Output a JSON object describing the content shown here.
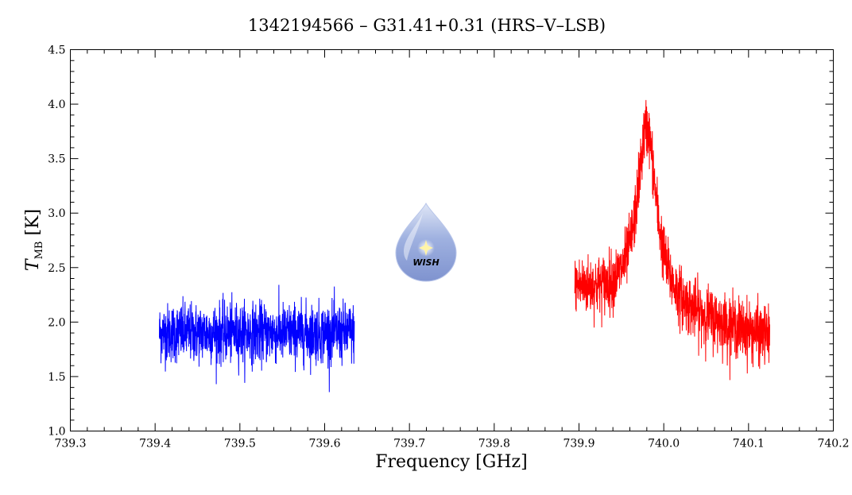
{
  "chart_data": {
    "type": "line",
    "title": "1342194566 – G31.41+0.31 (HRS–V–LSB)",
    "xlabel": "Frequency [GHz]",
    "ylabel": "T",
    "ylabel_subscript": "MB",
    "ylabel_unit": "[K]",
    "xlim": [
      739.3,
      740.2
    ],
    "ylim": [
      1.0,
      4.5
    ],
    "xticks": [
      739.3,
      739.4,
      739.5,
      739.6,
      739.7,
      739.8,
      739.9,
      740.0,
      740.1,
      740.2
    ],
    "xtick_labels": [
      "739.3",
      "739.4",
      "739.5",
      "739.6",
      "739.7",
      "739.8",
      "739.9",
      "740.0",
      "740.1",
      "740.2"
    ],
    "yticks": [
      1.0,
      1.5,
      2.0,
      2.5,
      3.0,
      3.5,
      4.0,
      4.5
    ],
    "ytick_labels": [
      "1.0",
      "1.5",
      "2.0",
      "2.5",
      "3.0",
      "3.5",
      "4.0",
      "4.5"
    ],
    "grid": false,
    "series": [
      {
        "color": "#0000ff",
        "x_range": [
          739.405,
          739.635
        ],
        "baseline": 1.9,
        "noise_rms": 0.18
      },
      {
        "color": "#ff0000",
        "x_range": [
          739.895,
          740.125
        ],
        "baseline_start": 2.3,
        "baseline_end": 1.85,
        "noise_rms": 0.18,
        "peak_center": 739.98,
        "peak_height": 1.65,
        "peak_width": 0.014
      }
    ]
  },
  "logo": {
    "name": "wish-logo-icon",
    "text": "WISH",
    "fill": "#8fa4d8",
    "text_color": "#f6e36a"
  }
}
